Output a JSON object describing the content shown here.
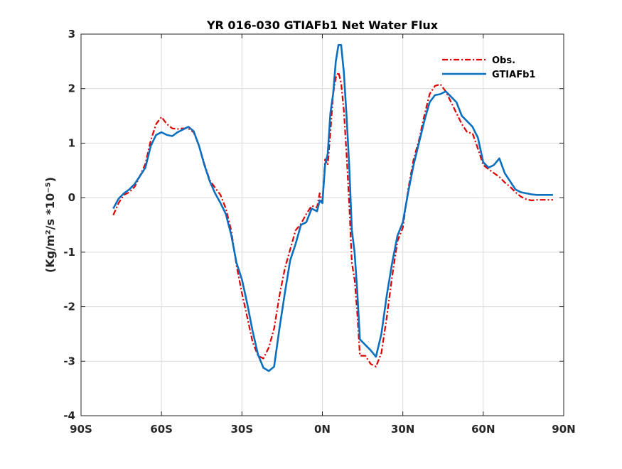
{
  "chart_data": {
    "type": "line",
    "title": "YR 016-030 GTIAFb1  Net Water Flux",
    "xlabel": "",
    "ylabel": "(Kg/m²/s *10⁻⁵)",
    "xlim": [
      -90,
      90
    ],
    "ylim": [
      -4,
      3
    ],
    "xticks": [
      -90,
      -60,
      -30,
      0,
      30,
      60,
      90
    ],
    "xtick_labels": [
      "90S",
      "60S",
      "30S",
      "0N",
      "30N",
      "60N",
      "90N"
    ],
    "yticks": [
      -4,
      -3,
      -2,
      -1,
      0,
      1,
      2,
      3
    ],
    "ytick_labels": [
      "-4",
      "-3",
      "-2",
      "-1",
      "0",
      "1",
      "2",
      "3"
    ],
    "grid": true,
    "legend_position": "top-right",
    "series": [
      {
        "name": "Obs.",
        "color": "#dd0000",
        "style": "dashdot",
        "x": [
          -78,
          -76,
          -74,
          -72,
          -70,
          -68,
          -66,
          -64,
          -62,
          -60,
          -58,
          -56,
          -54,
          -52,
          -50,
          -48,
          -46,
          -44,
          -42,
          -40,
          -38,
          -36,
          -34,
          -32,
          -30,
          -28,
          -26,
          -24,
          -22,
          -20,
          -18,
          -16,
          -14,
          -12,
          -10,
          -8,
          -6,
          -4,
          -2,
          -1,
          0,
          1,
          2,
          3,
          4,
          5,
          6,
          7,
          8,
          9,
          10,
          11,
          12,
          13,
          14,
          16,
          18,
          20,
          22,
          24,
          26,
          28,
          30,
          32,
          34,
          36,
          38,
          40,
          42,
          44,
          46,
          48,
          50,
          52,
          54,
          56,
          58,
          60,
          62,
          64,
          66,
          68,
          70,
          72,
          74,
          76,
          78,
          80,
          82,
          84,
          86
        ],
        "y": [
          -0.32,
          -0.1,
          0.05,
          0.1,
          0.2,
          0.4,
          0.62,
          1.05,
          1.35,
          1.48,
          1.35,
          1.27,
          1.26,
          1.27,
          1.27,
          1.2,
          0.95,
          0.62,
          0.32,
          0.18,
          0.05,
          -0.2,
          -0.6,
          -1.25,
          -1.75,
          -2.2,
          -2.65,
          -2.9,
          -2.95,
          -2.75,
          -2.4,
          -1.8,
          -1.3,
          -0.95,
          -0.6,
          -0.48,
          -0.3,
          -0.15,
          -0.18,
          0.08,
          -0.1,
          0.7,
          0.6,
          1.2,
          1.9,
          2.2,
          2.3,
          2.1,
          1.6,
          0.8,
          -0.1,
          -1.2,
          -1.5,
          -2.1,
          -2.9,
          -2.9,
          -3.05,
          -3.1,
          -2.85,
          -2.2,
          -1.45,
          -0.8,
          -0.55,
          0.15,
          0.7,
          1.05,
          1.5,
          1.9,
          2.05,
          2.08,
          1.95,
          1.75,
          1.55,
          1.35,
          1.2,
          1.18,
          0.9,
          0.6,
          0.52,
          0.45,
          0.38,
          0.28,
          0.2,
          0.1,
          0.02,
          -0.03,
          -0.05,
          -0.04,
          -0.04,
          -0.04,
          -0.04
        ]
      },
      {
        "name": "GTIAFb1",
        "color": "#0a6fbf",
        "style": "solid",
        "x": [
          -78,
          -76,
          -74,
          -72,
          -70,
          -68,
          -66,
          -64,
          -62,
          -60,
          -58,
          -56,
          -54,
          -52,
          -50,
          -48,
          -46,
          -44,
          -42,
          -40,
          -38,
          -36,
          -34,
          -32,
          -30,
          -28,
          -26,
          -24,
          -22,
          -20,
          -18,
          -16,
          -14,
          -12,
          -10,
          -8,
          -6,
          -4,
          -2,
          -1,
          0,
          1,
          2,
          3,
          4,
          5,
          6,
          7,
          8,
          9,
          10,
          11,
          12,
          13,
          14,
          16,
          18,
          20,
          22,
          24,
          26,
          28,
          30,
          32,
          34,
          36,
          38,
          40,
          42,
          44,
          46,
          48,
          50,
          52,
          54,
          56,
          58,
          60,
          62,
          64,
          66,
          68,
          70,
          72,
          74,
          76,
          78,
          80,
          82,
          84,
          86
        ],
        "y": [
          -0.2,
          -0.02,
          0.08,
          0.15,
          0.25,
          0.4,
          0.55,
          0.95,
          1.15,
          1.2,
          1.15,
          1.13,
          1.2,
          1.25,
          1.3,
          1.22,
          0.95,
          0.6,
          0.3,
          0.08,
          -0.1,
          -0.3,
          -0.68,
          -1.2,
          -1.5,
          -1.95,
          -2.45,
          -2.88,
          -3.12,
          -3.18,
          -3.1,
          -2.4,
          -1.75,
          -1.15,
          -0.85,
          -0.5,
          -0.45,
          -0.2,
          -0.25,
          -0.05,
          -0.1,
          0.6,
          0.8,
          1.55,
          1.9,
          2.5,
          2.8,
          2.8,
          2.3,
          1.5,
          0.6,
          -0.6,
          -1.0,
          -1.7,
          -2.6,
          -2.7,
          -2.8,
          -2.92,
          -2.5,
          -1.8,
          -1.2,
          -0.7,
          -0.45,
          0.1,
          0.6,
          1.0,
          1.4,
          1.75,
          1.88,
          1.9,
          1.95,
          1.85,
          1.75,
          1.5,
          1.4,
          1.3,
          1.1,
          0.65,
          0.55,
          0.6,
          0.72,
          0.45,
          0.3,
          0.15,
          0.1,
          0.08,
          0.06,
          0.05,
          0.05,
          0.05,
          0.05
        ]
      }
    ]
  }
}
